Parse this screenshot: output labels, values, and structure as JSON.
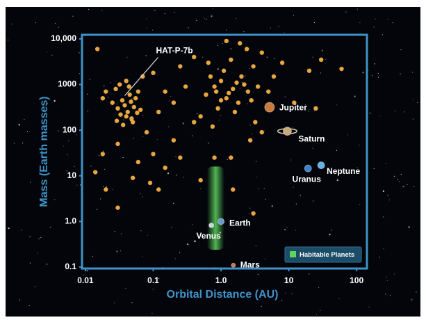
{
  "chart_data": {
    "type": "scatter",
    "xlabel": "Orbital Distance (AU)",
    "ylabel": "Mass (Earth masses)",
    "xscale": "log",
    "yscale": "log",
    "xlim": [
      0.0089,
      142
    ],
    "ylim": [
      0.093,
      12300
    ],
    "xticks": [
      0.01,
      0.1,
      {
        "value": 1,
        "label": "1.0"
      },
      10,
      100
    ],
    "yticks": [
      {
        "value": 10000,
        "label": "10,000"
      },
      1000,
      100,
      10,
      {
        "value": 1,
        "label": "1.0"
      },
      0.1
    ],
    "axis_color": "#3f93c9",
    "exoplanets": {
      "color": "#e8a640",
      "x": [
        0.03,
        0.035,
        0.04,
        0.045,
        0.05,
        0.028,
        0.032,
        0.038,
        0.042,
        0.055,
        0.048,
        0.025,
        0.06,
        0.036,
        0.044,
        0.052,
        0.033,
        0.029,
        0.065,
        0.04,
        0.02,
        0.018,
        0.047,
        0.058,
        0.07,
        0.015,
        0.1,
        0.15,
        0.2,
        0.12,
        0.08,
        0.1,
        0.06,
        0.2,
        0.3,
        0.25,
        0.4,
        0.014,
        0.02,
        0.03,
        0.05,
        0.09,
        0.15,
        0.03,
        0.25,
        0.5,
        0.12,
        0.8,
        1.5,
        3,
        0.018,
        0.6,
        0.8,
        1.0,
        1.2,
        1.5,
        2,
        2.5,
        3,
        1.8,
        0.9,
        1.1,
        1.4,
        2.2,
        0.7,
        1.3,
        1.7,
        2.8,
        3.5,
        4,
        0.5,
        0.65,
        1.6,
        2.4,
        1.0,
        0.85,
        5,
        6,
        12,
        20,
        30,
        25,
        60,
        8,
        3.2,
        0.4,
        1.9,
        1.2,
        0.75,
        2.7,
        1.4,
        4
      ],
      "y": [
        300,
        450,
        200,
        600,
        150,
        800,
        1000,
        350,
        250,
        500,
        180,
        400,
        700,
        130,
        900,
        320,
        220,
        160,
        280,
        1200,
        700,
        500,
        420,
        240,
        1500,
        6000,
        1800,
        700,
        400,
        250,
        90,
        30,
        20,
        60,
        900,
        2500,
        150,
        12,
        5,
        50,
        9,
        7,
        15,
        2,
        25,
        8,
        5,
        25,
        5,
        1.5,
        30,
        600,
        900,
        1200,
        500,
        800,
        1500,
        700,
        2500,
        400,
        300,
        2000,
        3500,
        1000,
        1500,
        650,
        1100,
        450,
        900,
        5000,
        200,
        3000,
        250,
        6000,
        450,
        700,
        700,
        1500,
        400,
        2000,
        3500,
        300,
        2200,
        3000,
        150,
        4000,
        8000,
        9000,
        120,
        60,
        25,
        90
      ]
    },
    "annotation": {
      "text": "HAT-P-7b",
      "x": 0.038,
      "y": 570
    },
    "planets": [
      {
        "name": "Jupiter",
        "x": 5.2,
        "y": 318,
        "color": "#c77a3c"
      },
      {
        "name": "Saturn",
        "x": 9.5,
        "y": 95,
        "color": "#c9a97a"
      },
      {
        "name": "Neptune",
        "x": 30,
        "y": 17,
        "color": "#5fb4e6"
      },
      {
        "name": "Uranus",
        "x": 19.2,
        "y": 14.5,
        "color": "#3a82d0"
      },
      {
        "name": "Earth",
        "x": 1,
        "y": 1,
        "color": "#6a9ac8"
      },
      {
        "name": "Venus",
        "x": 0.72,
        "y": 0.82,
        "color": "#c4d4e4"
      },
      {
        "name": "Mars",
        "x": 1.52,
        "y": 0.11,
        "color": "#d0764a"
      }
    ],
    "habitable_zone": {
      "label": "Habitable Planets",
      "color": "#5fd45f",
      "xlim": [
        0.62,
        1.12
      ],
      "ylim": [
        0.24,
        16
      ]
    }
  }
}
